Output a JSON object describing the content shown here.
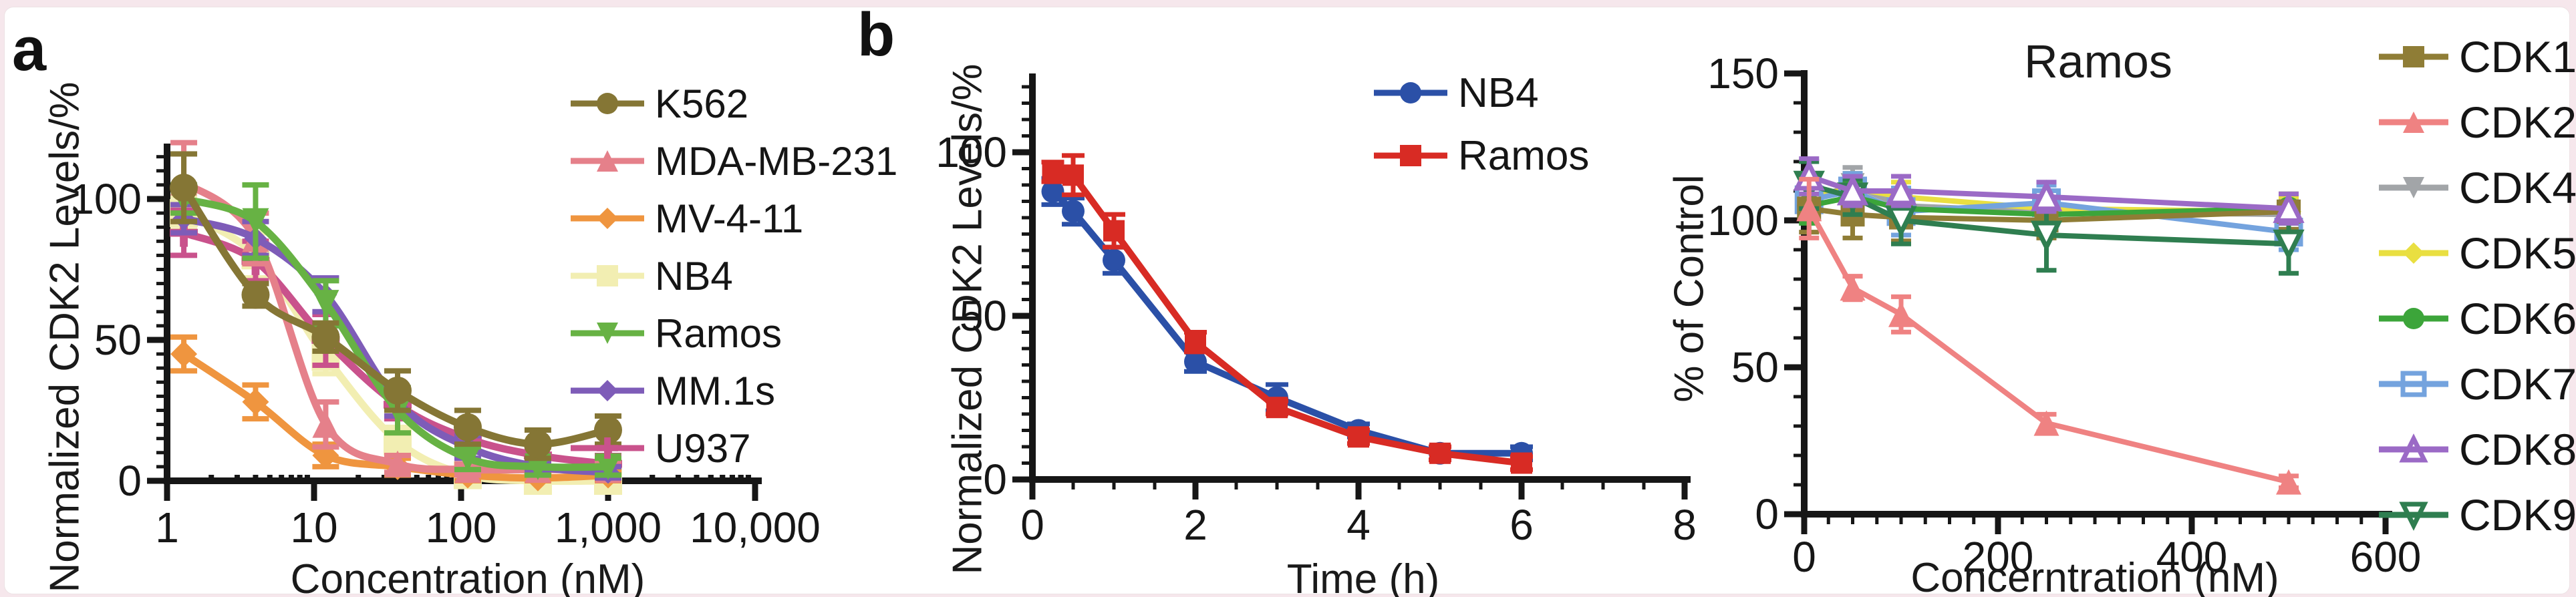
{
  "page": {
    "background_color": "#f6e7ec",
    "sheet_color": "#ffffff",
    "axis_color": "#161616",
    "text_color": "#1a1a1a"
  },
  "panels": {
    "a": {
      "letter": "a",
      "ylabel": "Normalized CDK2 Levels/%",
      "xlabel": "Concentration (nM)"
    },
    "b": {
      "letter": "b",
      "ylabel": "Normalized CDK2 Levels/%",
      "xlabel": "Time (h)"
    },
    "c": {
      "title": "Ramos",
      "ylabel": "% of Control",
      "xlabel": "Concerntration (nM)"
    }
  },
  "chart_data": [
    {
      "id": "a",
      "type": "line",
      "subtype": "dose-response",
      "x_scale": "log",
      "title": "",
      "xlabel": "Concentration (nM)",
      "ylabel": "Normalized CDK2 Levels/%",
      "xlim": [
        1,
        10000
      ],
      "ylim": [
        0,
        120
      ],
      "grid": false,
      "legend_position": "right",
      "x_ticks": [
        {
          "v": 1,
          "label": "1"
        },
        {
          "v": 10,
          "label": "10"
        },
        {
          "v": 100,
          "label": "100"
        },
        {
          "v": 1000,
          "label": "1,000"
        },
        {
          "v": 10000,
          "label": "10,000"
        }
      ],
      "y_ticks": [
        {
          "v": 0,
          "label": "0"
        },
        {
          "v": 50,
          "label": "50"
        },
        {
          "v": 100,
          "label": "100"
        }
      ],
      "x": [
        1.3,
        4,
        12,
        37,
        111,
        333,
        1000
      ],
      "series": [
        {
          "name": "K562",
          "color": "#857635",
          "marker": "circle",
          "open": false,
          "msize": 42,
          "z": 7,
          "smooth": true,
          "y": [
            104,
            66,
            51,
            32,
            19,
            13,
            18
          ],
          "err": [
            12,
            4,
            5,
            7,
            6,
            5,
            5
          ]
        },
        {
          "name": "MDA-MB-231",
          "color": "#e5808a",
          "marker": "triangle-up",
          "open": false,
          "msize": 40,
          "z": 4,
          "smooth": true,
          "y": [
            106,
            86,
            20,
            6,
            4,
            4,
            4
          ],
          "err": [
            14,
            9,
            8,
            3,
            2,
            2,
            3
          ]
        },
        {
          "name": "MV-4-11",
          "color": "#ef953f",
          "marker": "diamond",
          "open": false,
          "msize": 40,
          "z": 3,
          "smooth": true,
          "y": [
            45,
            28,
            9,
            5,
            2,
            1,
            2
          ],
          "err": [
            6,
            6,
            4,
            3,
            2,
            1,
            2
          ]
        },
        {
          "name": "NB4",
          "color": "#f2eeb2",
          "marker": "square",
          "open": false,
          "msize": 42,
          "z": 1,
          "smooth": true,
          "y": [
            95,
            80,
            44,
            14,
            2,
            0,
            0
          ],
          "err": [
            6,
            8,
            6,
            5,
            2,
            1,
            1
          ]
        },
        {
          "name": "Ramos",
          "color": "#67b244",
          "marker": "triangle-down",
          "open": false,
          "msize": 40,
          "z": 6,
          "smooth": true,
          "y": [
            100,
            92,
            63,
            25,
            8,
            5,
            5
          ],
          "err": [
            5,
            13,
            8,
            8,
            4,
            3,
            3
          ]
        },
        {
          "name": "MM.1s",
          "color": "#7e5cb8",
          "marker": "diamond",
          "open": false,
          "msize": 34,
          "z": 5,
          "smooth": true,
          "y": [
            93,
            86,
            66,
            28,
            12,
            5,
            3
          ],
          "err": [
            5,
            6,
            6,
            5,
            4,
            2,
            2
          ]
        },
        {
          "name": "U937",
          "color": "#c9528c",
          "marker": "plus",
          "open": false,
          "msize": 42,
          "z": 2,
          "smooth": true,
          "y": [
            88,
            78,
            50,
            27,
            15,
            9,
            6
          ],
          "err": [
            8,
            7,
            9,
            5,
            4,
            3,
            3
          ]
        }
      ]
    },
    {
      "id": "b",
      "type": "line",
      "subtype": "time-course",
      "x_scale": "linear",
      "title": "",
      "xlabel": "Time (h)",
      "ylabel": "Normalized CDK2 Levels/%",
      "xlim": [
        0,
        8
      ],
      "ylim": [
        0,
        120
      ],
      "grid": false,
      "legend_position": "top-right",
      "x_ticks": [
        {
          "v": 0,
          "label": "0"
        },
        {
          "v": 2,
          "label": "2"
        },
        {
          "v": 4,
          "label": "4"
        },
        {
          "v": 6,
          "label": "6"
        },
        {
          "v": 8,
          "label": "8"
        }
      ],
      "y_ticks": [
        {
          "v": 0,
          "label": "0"
        },
        {
          "v": 50,
          "label": "50"
        },
        {
          "v": 100,
          "label": "100"
        }
      ],
      "x": [
        0.25,
        0.5,
        1,
        2,
        3,
        4,
        5,
        6
      ],
      "series": [
        {
          "name": "NB4",
          "color": "#2b50a7",
          "marker": "circle",
          "open": false,
          "msize": 34,
          "z": 1,
          "smooth": false,
          "y": [
            88,
            82,
            67,
            36,
            25,
            15,
            8,
            8
          ],
          "err": [
            4,
            4,
            4,
            3,
            4,
            2,
            2,
            2
          ]
        },
        {
          "name": "Ramos",
          "color": "#d82b24",
          "marker": "square",
          "open": false,
          "msize": 32,
          "z": 2,
          "smooth": false,
          "y": [
            94,
            93,
            76,
            42,
            22,
            13,
            8,
            5
          ],
          "err": [
            3,
            6,
            5,
            3,
            2,
            2,
            2,
            2
          ]
        }
      ]
    },
    {
      "id": "c",
      "type": "line",
      "subtype": "selectivity",
      "x_scale": "linear",
      "title": "Ramos",
      "xlabel": "Concerntration (nM)",
      "ylabel": "% of Control",
      "xlim": [
        0,
        600
      ],
      "ylim": [
        0,
        150
      ],
      "grid": false,
      "legend_position": "right",
      "x_ticks": [
        {
          "v": 0,
          "label": "0"
        },
        {
          "v": 200,
          "label": "200"
        },
        {
          "v": 400,
          "label": "400"
        },
        {
          "v": 600,
          "label": "600"
        }
      ],
      "y_ticks": [
        {
          "v": 0,
          "label": "0"
        },
        {
          "v": 50,
          "label": "50"
        },
        {
          "v": 100,
          "label": "100"
        },
        {
          "v": 150,
          "label": "150"
        }
      ],
      "x": [
        5,
        50,
        100,
        250,
        500
      ],
      "series": [
        {
          "name": "CDK1",
          "color": "#8f7d36",
          "marker": "square",
          "open": false,
          "msize": 36,
          "z": 5,
          "smooth": false,
          "y": [
            104,
            102,
            101,
            100,
            103
          ],
          "err": [
            8,
            8,
            8,
            6,
            6
          ]
        },
        {
          "name": "CDK2",
          "color": "#ef8282",
          "marker": "triangle-up",
          "open": false,
          "msize": 38,
          "z": 8,
          "smooth": false,
          "y": [
            104,
            77,
            68,
            31,
            11
          ],
          "err": [
            10,
            4,
            6,
            3,
            2
          ]
        },
        {
          "name": "CDK4",
          "color": "#a2a5a8",
          "marker": "triangle-down",
          "open": false,
          "msize": 36,
          "z": 1,
          "smooth": false,
          "y": [
            107,
            112,
            105,
            103,
            102
          ],
          "err": [
            6,
            6,
            6,
            5,
            5
          ]
        },
        {
          "name": "CDK5",
          "color": "#e9df41",
          "marker": "diamond",
          "open": false,
          "msize": 38,
          "z": 2,
          "smooth": false,
          "y": [
            108,
            111,
            108,
            104,
            103
          ],
          "err": [
            6,
            5,
            5,
            5,
            5
          ]
        },
        {
          "name": "CDK6",
          "color": "#3ca53a",
          "marker": "circle",
          "open": false,
          "msize": 36,
          "z": 4,
          "smooth": false,
          "y": [
            105,
            108,
            104,
            102,
            104
          ],
          "err": [
            6,
            5,
            6,
            5,
            5
          ]
        },
        {
          "name": "CDK7",
          "color": "#74a3de",
          "marker": "square",
          "open": true,
          "msize": 36,
          "z": 3,
          "smooth": false,
          "y": [
            107,
            110,
            103,
            106,
            96
          ],
          "err": [
            6,
            6,
            8,
            6,
            6
          ]
        },
        {
          "name": "CDK8",
          "color": "#9b6ac6",
          "marker": "triangle-up",
          "open": true,
          "msize": 36,
          "z": 7,
          "smooth": false,
          "y": [
            115,
            110,
            110,
            108,
            104
          ],
          "err": [
            6,
            5,
            5,
            5,
            5
          ]
        },
        {
          "name": "CDK9",
          "color": "#2f7e50",
          "marker": "triangle-down",
          "open": true,
          "msize": 36,
          "z": 6,
          "smooth": false,
          "y": [
            112,
            108,
            100,
            95,
            92
          ],
          "err": [
            8,
            6,
            8,
            12,
            10
          ]
        }
      ]
    }
  ]
}
